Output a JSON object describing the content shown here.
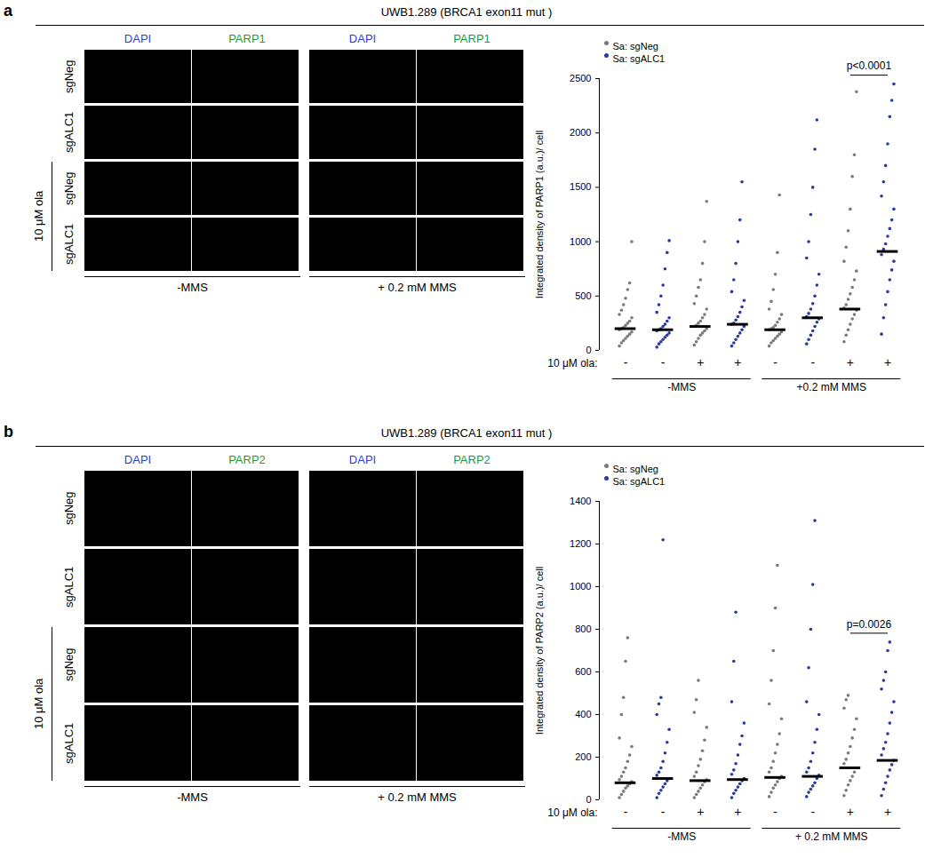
{
  "figure": [
    {
      "letter": "a",
      "title": "UWB1.289 (BRCA1 exon11 mut )",
      "image_grid": {
        "stains": [
          "DAPI",
          "PARP1"
        ],
        "rows": [
          "sgNeg",
          "sgALC1",
          "sgNeg",
          "sgALC1"
        ],
        "row_group": "10 μM ola",
        "conditions": [
          "-MMS",
          "+ 0.2 mM MMS"
        ]
      }
    },
    {
      "letter": "b",
      "title": "UWB1.289 (BRCA1 exon11 mut )",
      "image_grid": {
        "stains": [
          "DAPI",
          "PARP2"
        ],
        "rows": [
          "sgNeg",
          "sgALC1",
          "sgNeg",
          "sgALC1"
        ],
        "row_group": "10 μM ola",
        "conditions": [
          "-MMS",
          "+ 0.2 mM MMS"
        ]
      }
    }
  ],
  "chart_data": [
    {
      "type": "scatter",
      "ylabel": "Integrated density of PARP1 (a.u.)/ cell",
      "xlabel": "10 μM ola:",
      "categories": [
        "-",
        "-",
        "+",
        "+",
        "-",
        "-",
        "+",
        "+"
      ],
      "group_labels": [
        "-MMS",
        "+0.2 mM MMS"
      ],
      "ylim": [
        0,
        2500
      ],
      "yticks": [
        0,
        500,
        1000,
        1500,
        2000,
        2500
      ],
      "legend": "top-left",
      "annotations": [
        {
          "text": "p<0.0001",
          "from": 6,
          "to": 7
        }
      ],
      "series": [
        {
          "name": "Sa: sgNeg",
          "color": "#7a7a7a",
          "medians": [
            200,
            null,
            220,
            null,
            190,
            null,
            380,
            null
          ],
          "values": [
            [
              40,
              70,
              90,
              110,
              130,
              150,
              170,
              190,
              200,
              210,
              230,
              250,
              270,
              300,
              330,
              370,
              420,
              480,
              560,
              620,
              1000
            ],
            null,
            [
              50,
              80,
              110,
              140,
              160,
              180,
              200,
              220,
              230,
              250,
              270,
              300,
              330,
              380,
              430,
              500,
              580,
              650,
              800,
              1000,
              1370
            ],
            null,
            [
              40,
              70,
              90,
              110,
              130,
              150,
              170,
              190,
              200,
              210,
              230,
              260,
              290,
              330,
              380,
              450,
              560,
              700,
              900,
              1430
            ],
            null,
            [
              80,
              140,
              190,
              240,
              290,
              330,
              370,
              390,
              420,
              470,
              520,
              580,
              650,
              730,
              820,
              950,
              1100,
              1300,
              1600,
              1800,
              2380
            ],
            null
          ]
        },
        {
          "name": "Sa: sgALC1",
          "color": "#2a3b9c",
          "medians": [
            null,
            190,
            null,
            240,
            null,
            300,
            null,
            910
          ],
          "values": [
            null,
            [
              30,
              60,
              80,
              100,
              120,
              140,
              160,
              180,
              190,
              200,
              220,
              240,
              270,
              300,
              350,
              420,
              500,
              600,
              750,
              900,
              1010
            ],
            null,
            [
              40,
              70,
              100,
              130,
              160,
              190,
              220,
              240,
              250,
              280,
              310,
              350,
              400,
              460,
              540,
              650,
              800,
              1000,
              1200,
              1550
            ],
            null,
            [
              60,
              100,
              140,
              180,
              220,
              260,
              290,
              310,
              340,
              380,
              430,
              500,
              600,
              700,
              850,
              1000,
              1250,
              1500,
              1850,
              2120
            ],
            null,
            [
              150,
              300,
              420,
              540,
              650,
              740,
              820,
              880,
              930,
              980,
              1050,
              1120,
              1200,
              1300,
              1420,
              1550,
              1700,
              1900,
              2150,
              2300,
              2450
            ]
          ]
        }
      ]
    },
    {
      "type": "scatter",
      "ylabel": "Integrated density of PARP2 (a.u.)/ cell",
      "xlabel": "10 μM ola:",
      "categories": [
        "-",
        "-",
        "+",
        "+",
        "-",
        "-",
        "+",
        "+"
      ],
      "group_labels": [
        "-MMS",
        "+ 0.2 mM MMS"
      ],
      "ylim": [
        0,
        1400
      ],
      "yticks": [
        0,
        200,
        400,
        600,
        800,
        1000,
        1200,
        1400
      ],
      "legend": "top-left",
      "annotations": [
        {
          "text": "p=0.0026",
          "from": 6,
          "to": 7
        }
      ],
      "series": [
        {
          "name": "Sa: sgNeg",
          "color": "#7a7a7a",
          "medians": [
            80,
            null,
            90,
            null,
            105,
            null,
            150,
            null
          ],
          "values": [
            [
              10,
              25,
              40,
              55,
              65,
              75,
              85,
              95,
              110,
              130,
              150,
              180,
              210,
              250,
              290,
              400,
              480,
              650,
              760
            ],
            null,
            [
              10,
              25,
              40,
              55,
              70,
              85,
              95,
              110,
              130,
              160,
              190,
              230,
              280,
              340,
              410,
              470,
              560
            ],
            null,
            [
              15,
              35,
              55,
              70,
              85,
              100,
              110,
              130,
              150,
              180,
              220,
              260,
              310,
              380,
              450,
              560,
              700,
              900,
              1100
            ],
            null,
            [
              20,
              45,
              70,
              90,
              110,
              130,
              150,
              170,
              190,
              220,
              250,
              290,
              330,
              380,
              430,
              470,
              490
            ],
            null
          ]
        },
        {
          "name": "Sa: sgALC1",
          "color": "#2a3b9c",
          "medians": [
            null,
            100,
            null,
            95,
            null,
            110,
            null,
            185
          ],
          "values": [
            null,
            [
              10,
              30,
              45,
              60,
              75,
              90,
              100,
              115,
              130,
              150,
              180,
              220,
              270,
              330,
              400,
              450,
              480,
              1220
            ],
            null,
            [
              10,
              30,
              45,
              60,
              75,
              90,
              100,
              120,
              140,
              170,
              210,
              260,
              300,
              360,
              460,
              650,
              880
            ],
            null,
            [
              15,
              35,
              50,
              65,
              80,
              100,
              115,
              130,
              150,
              180,
              220,
              270,
              330,
              400,
              460,
              620,
              800,
              1010,
              1310
            ],
            null,
            [
              20,
              50,
              80,
              110,
              140,
              165,
              185,
              210,
              240,
              270,
              310,
              360,
              410,
              460,
              520,
              560,
              600,
              700,
              740
            ]
          ]
        }
      ]
    }
  ]
}
